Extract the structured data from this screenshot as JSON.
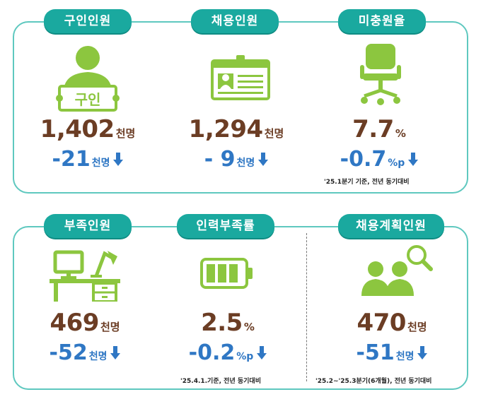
{
  "colors": {
    "accent": "#1aa99f",
    "border": "#5ec8bf",
    "icon_green": "#8cc63f",
    "value": "#6b3d24",
    "change": "#2f77c4"
  },
  "top": [
    {
      "label": "구인인원",
      "value": "1,402",
      "unit": "천명",
      "change": "-21",
      "change_unit": "천명",
      "icon": "job-seeker-sign-icon",
      "sign_text": "구인"
    },
    {
      "label": "채용인원",
      "value": "1,294",
      "unit": "천명",
      "change": "- 9",
      "change_unit": "천명",
      "icon": "id-card-icon"
    },
    {
      "label": "미충원율",
      "value": "7.7",
      "unit": "%",
      "change": "-0.7",
      "change_unit": "%p",
      "icon": "office-chair-icon",
      "note": "'25.1분기 기준, 전년 동기대비"
    }
  ],
  "bottom": [
    {
      "label": "부족인원",
      "value": "469",
      "unit": "천명",
      "change": "-52",
      "change_unit": "천명",
      "icon": "desk-icon"
    },
    {
      "label": "인력부족률",
      "value": "2.5",
      "unit": "%",
      "change": "-0.2",
      "change_unit": "%p",
      "icon": "battery-icon",
      "note": "'25.4.1.기준, 전년 동기대비"
    },
    {
      "label": "채용계획인원",
      "value": "470",
      "unit": "천명",
      "change": "-51",
      "change_unit": "천명",
      "icon": "people-search-icon",
      "note": "'25.2~'25.3분기(6개월), 전년 동기대비"
    }
  ]
}
